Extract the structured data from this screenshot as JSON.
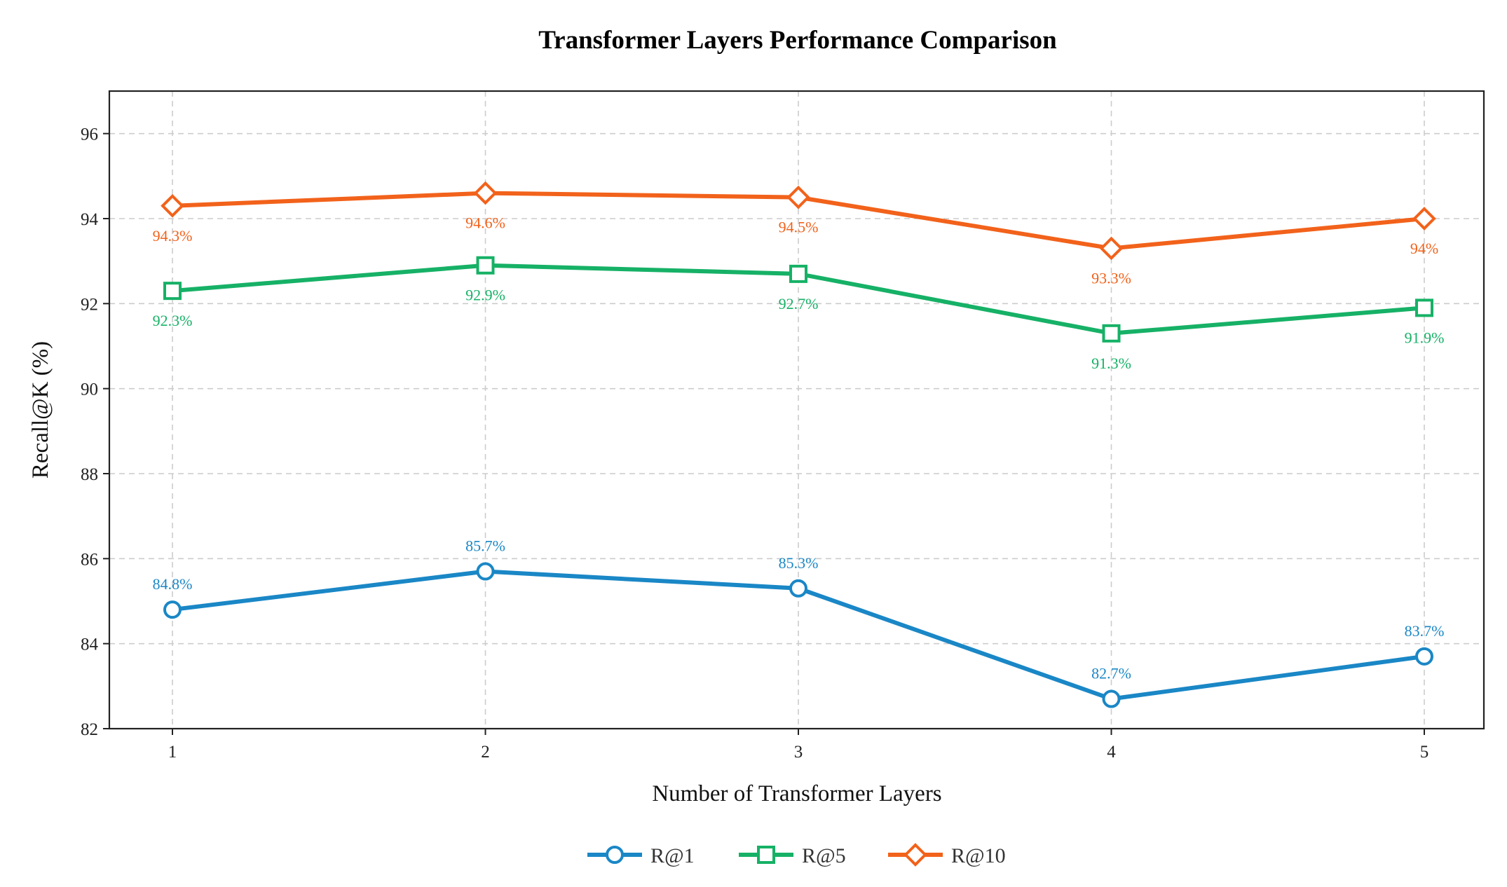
{
  "chart_data": {
    "type": "line",
    "title": "Transformer Layers Performance Comparison",
    "xlabel": "Number of Transformer Layers",
    "ylabel": "Recall@K (%)",
    "x": [
      1,
      2,
      3,
      4,
      5
    ],
    "xticks": [
      "1",
      "2",
      "3",
      "4",
      "5"
    ],
    "ylim": [
      82,
      97
    ],
    "yticks": [
      82,
      84,
      86,
      88,
      90,
      92,
      94,
      96
    ],
    "grid": true,
    "legend_position": "bottom-center",
    "series": [
      {
        "name": "R@1",
        "color": "#1a87c6",
        "marker": "circle",
        "values": [
          84.8,
          85.7,
          85.3,
          82.7,
          83.7
        ],
        "labels": [
          "84.8%",
          "85.7%",
          "85.3%",
          "82.7%",
          "83.7%"
        ],
        "label_placement": "above"
      },
      {
        "name": "R@5",
        "color": "#16b166",
        "marker": "square",
        "values": [
          92.3,
          92.9,
          92.7,
          91.3,
          91.9
        ],
        "labels": [
          "92.3%",
          "92.9%",
          "92.7%",
          "91.3%",
          "91.9%"
        ],
        "label_placement": "below"
      },
      {
        "name": "R@10",
        "color": "#f2621b",
        "marker": "diamond",
        "values": [
          94.3,
          94.6,
          94.5,
          93.3,
          94.0
        ],
        "labels": [
          "94.3%",
          "94.6%",
          "94.5%",
          "93.3%",
          "94%"
        ],
        "label_placement": "below"
      }
    ]
  }
}
